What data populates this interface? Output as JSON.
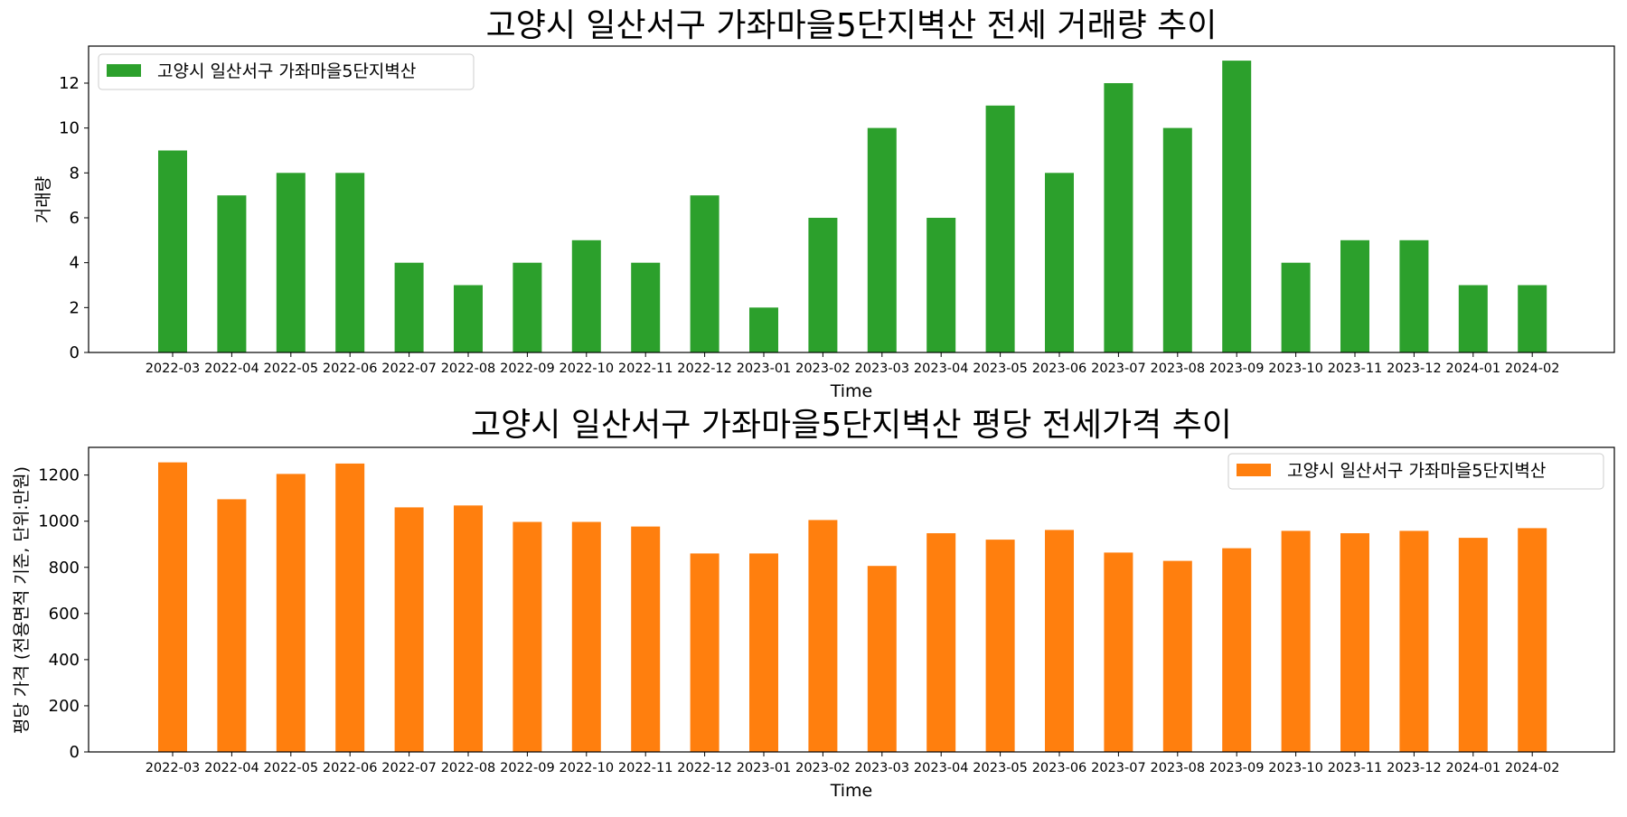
{
  "chart_data": [
    {
      "type": "bar",
      "title": "고양시 일산서구 가좌마을5단지벽산 전세 거래량 추이",
      "xlabel": "Time",
      "ylabel": "거래량",
      "categories": [
        "2022-03",
        "2022-04",
        "2022-05",
        "2022-06",
        "2022-07",
        "2022-08",
        "2022-09",
        "2022-10",
        "2022-11",
        "2022-12",
        "2023-01",
        "2023-02",
        "2023-03",
        "2023-04",
        "2023-05",
        "2023-06",
        "2023-07",
        "2023-08",
        "2023-09",
        "2023-10",
        "2023-11",
        "2023-12",
        "2024-01",
        "2024-02"
      ],
      "series": [
        {
          "name": "고양시 일산서구 가좌마을5단지벽산",
          "color": "#2ca02c",
          "values": [
            9,
            7,
            8,
            8,
            4,
            3,
            4,
            5,
            4,
            7,
            2,
            6,
            10,
            6,
            11,
            8,
            12,
            10,
            13,
            4,
            5,
            5,
            3,
            3
          ]
        }
      ],
      "ylim": [
        0,
        13.65
      ],
      "yticks": [
        0,
        2,
        4,
        6,
        8,
        10,
        12
      ],
      "grid": false,
      "legend_position": "upper-left"
    },
    {
      "type": "bar",
      "title": "고양시 일산서구 가좌마을5단지벽산 평당 전세가격 추이",
      "xlabel": "Time",
      "ylabel": "평당 가격 (전용면적 기준, 단위:만원)",
      "categories": [
        "2022-03",
        "2022-04",
        "2022-05",
        "2022-06",
        "2022-07",
        "2022-08",
        "2022-09",
        "2022-10",
        "2022-11",
        "2022-12",
        "2023-01",
        "2023-02",
        "2023-03",
        "2023-04",
        "2023-05",
        "2023-06",
        "2023-07",
        "2023-08",
        "2023-09",
        "2023-10",
        "2023-11",
        "2023-12",
        "2024-01",
        "2024-02"
      ],
      "series": [
        {
          "name": "고양시 일산서구 가좌마을5단지벽산",
          "color": "#ff7f0e",
          "values": [
            1255,
            1095,
            1205,
            1250,
            1060,
            1068,
            997,
            997,
            977,
            860,
            860,
            1005,
            806,
            948,
            920,
            962,
            864,
            828,
            883,
            958,
            948,
            958,
            928,
            970
          ]
        }
      ],
      "ylim": [
        0,
        1320
      ],
      "yticks": [
        0,
        200,
        400,
        600,
        800,
        1000,
        1200
      ],
      "grid": false,
      "legend_position": "upper-right"
    }
  ]
}
